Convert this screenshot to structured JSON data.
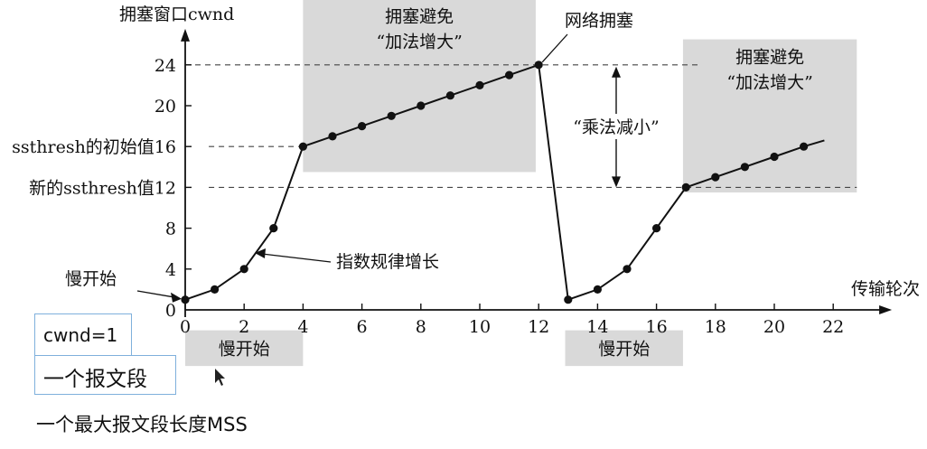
{
  "chart_data": {
    "type": "line",
    "ylabel": "拥塞窗口cwnd",
    "xlabel": "传输轮次",
    "x_ticks": [
      0,
      2,
      4,
      6,
      8,
      10,
      12,
      14,
      16,
      18,
      20,
      22
    ],
    "y_ticks": [
      0,
      4,
      8,
      12,
      16,
      20,
      24
    ],
    "xlim": [
      0,
      23.5
    ],
    "ylim": [
      0,
      27
    ],
    "grid": false,
    "x": [
      0,
      1,
      2,
      3,
      4,
      5,
      6,
      7,
      8,
      9,
      10,
      11,
      12,
      13,
      14,
      15,
      16,
      17,
      18,
      19,
      20,
      21
    ],
    "values": [
      1,
      2,
      4,
      8,
      16,
      17,
      18,
      19,
      20,
      21,
      22,
      23,
      24,
      1,
      2,
      4,
      8,
      12,
      13,
      14,
      15,
      16
    ],
    "line_extend_to": [
      21.7,
      16.6
    ],
    "y_special_labels": [
      {
        "y": 16,
        "text": "ssthresh的初始值16"
      },
      {
        "y": 12,
        "text": "新的ssthresh值12"
      }
    ],
    "reference_lines": [
      {
        "y": 24,
        "from_x": 0,
        "to_x": 17.5
      },
      {
        "y": 16,
        "from_x": 0.8,
        "to_x": 4
      },
      {
        "y": 12,
        "from_x": 0.8,
        "to_x": 22.8
      }
    ],
    "regions": [
      {
        "name": "ca1",
        "x0": 4,
        "x1": 11.9,
        "y0": 13.5,
        "y1": 30.5,
        "label": [
          "拥塞避免",
          "“加法增大”"
        ]
      },
      {
        "name": "ca2",
        "x0": 16.9,
        "x1": 22.8,
        "y0": 11.5,
        "y1": 26.5,
        "label": [
          "拥塞避免",
          "“加法增大”"
        ]
      },
      {
        "name": "ss1",
        "x0": 0,
        "x1": 4,
        "y0": -5.5,
        "y1": -2.0,
        "label": [
          "慢开始"
        ]
      },
      {
        "name": "ss2",
        "x0": 12.9,
        "x1": 16.9,
        "y0": -5.5,
        "y1": -2.0,
        "label": [
          "慢开始"
        ]
      }
    ],
    "annotations": {
      "congestion": "网络拥塞",
      "multiplicative": "“乘法减小”",
      "exponential": "指数规律增长",
      "slow_start": "慢开始"
    },
    "color": "#111111",
    "region_color": "#d9d9d9"
  },
  "legend_boxes": {
    "cwnd": "cwnd=1",
    "segment": "一个报文段"
  },
  "footer_text": "一个最大报文段长度MSS"
}
